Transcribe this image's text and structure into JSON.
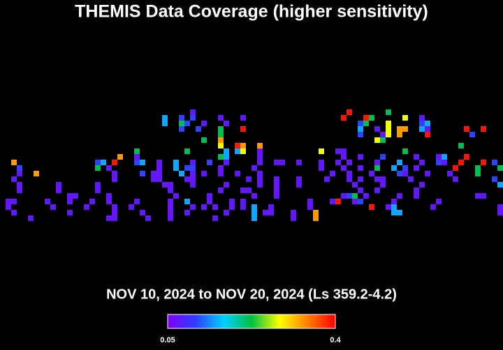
{
  "chart_data": {
    "type": "heatmap",
    "title": "THEMIS Data Coverage (higher sensitivity)",
    "subtitle": "NOV 10, 2024 to NOV 20, 2024 (Ls 359.2-4.2)",
    "clim": [
      0.05,
      0.4
    ],
    "colorbar": {
      "ticks": [
        0.05,
        0.4
      ]
    },
    "colorscale": [
      "#7f00ff",
      "#2f3fff",
      "#00d0ff",
      "#00c040",
      "#ffff00",
      "#ff8000",
      "#ff0000"
    ],
    "cells": [
      [
        34,
        0,
        0.07
      ],
      [
        62,
        0,
        0.39
      ],
      [
        69,
        0,
        0.22
      ],
      [
        32,
        1,
        0.11
      ],
      [
        34,
        1,
        0.11
      ],
      [
        29,
        1,
        0.15
      ],
      [
        39,
        1,
        0.07
      ],
      [
        43,
        1,
        0.07
      ],
      [
        61,
        1,
        0.39
      ],
      [
        65,
        1,
        0.39
      ],
      [
        66,
        1,
        0.22
      ],
      [
        72,
        1,
        0.28
      ],
      [
        75,
        1,
        0.07
      ],
      [
        29,
        2,
        0.15
      ],
      [
        32,
        2,
        0.22
      ],
      [
        33,
        2,
        0.11
      ],
      [
        36,
        2,
        0.07
      ],
      [
        40,
        2,
        0.07
      ],
      [
        64,
        2,
        0.11
      ],
      [
        65,
        2,
        0.22
      ],
      [
        69,
        2,
        0.28
      ],
      [
        75,
        2,
        0.11
      ],
      [
        76,
        2,
        0.15
      ],
      [
        32,
        3,
        0.11
      ],
      [
        35,
        3,
        0.11
      ],
      [
        39,
        3,
        0.22
      ],
      [
        43,
        3,
        0.39
      ],
      [
        64,
        3,
        0.15
      ],
      [
        67,
        3,
        0.07
      ],
      [
        69,
        3,
        0.28
      ],
      [
        71,
        3,
        0.33
      ],
      [
        72,
        3,
        0.33
      ],
      [
        75,
        3,
        0.15
      ],
      [
        76,
        3,
        0.07
      ],
      [
        83,
        3,
        0.39
      ],
      [
        86,
        3,
        0.39
      ],
      [
        39,
        4,
        0.22
      ],
      [
        64,
        4,
        0.11
      ],
      [
        68,
        4,
        0.07
      ],
      [
        69,
        4,
        0.28
      ],
      [
        71,
        4,
        0.33
      ],
      [
        76,
        4,
        0.39
      ],
      [
        84,
        4,
        0.11
      ],
      [
        36,
        5,
        0.22
      ],
      [
        39,
        5,
        0.33
      ],
      [
        67,
        5,
        0.28
      ],
      [
        68,
        5,
        0.22
      ],
      [
        39,
        6,
        0.28
      ],
      [
        42,
        6,
        0.39
      ],
      [
        43,
        6,
        0.33
      ],
      [
        46,
        6,
        0.33
      ],
      [
        82,
        6,
        0.22
      ],
      [
        24,
        7,
        0.22
      ],
      [
        33,
        7,
        0.22
      ],
      [
        40,
        7,
        0.15
      ],
      [
        42,
        7,
        0.15
      ],
      [
        43,
        7,
        0.28
      ],
      [
        46,
        7,
        0.07
      ],
      [
        57,
        7,
        0.28
      ],
      [
        60,
        7,
        0.07
      ],
      [
        61,
        7,
        0.07
      ],
      [
        72,
        7,
        0.22
      ],
      [
        21,
        8,
        0.33
      ],
      [
        24,
        8,
        0.07
      ],
      [
        39,
        8,
        0.22
      ],
      [
        40,
        8,
        0.15
      ],
      [
        46,
        8,
        0.07
      ],
      [
        61,
        8,
        0.07
      ],
      [
        64,
        8,
        0.07
      ],
      [
        68,
        8,
        0.11
      ],
      [
        74,
        8,
        0.07
      ],
      [
        78,
        8,
        0.07
      ],
      [
        79,
        8,
        0.15
      ],
      [
        83,
        8,
        0.39
      ],
      [
        2,
        9,
        0.33
      ],
      [
        17,
        9,
        0.11
      ],
      [
        18,
        9,
        0.15
      ],
      [
        20,
        9,
        0.39
      ],
      [
        24,
        9,
        0.11
      ],
      [
        25,
        9,
        0.15
      ],
      [
        28,
        9,
        0.07
      ],
      [
        31,
        9,
        0.15
      ],
      [
        34,
        9,
        0.07
      ],
      [
        37,
        9,
        0.11
      ],
      [
        40,
        9,
        0.07
      ],
      [
        46,
        9,
        0.07
      ],
      [
        49,
        9,
        0.07
      ],
      [
        50,
        9,
        0.07
      ],
      [
        53,
        9,
        0.07
      ],
      [
        57,
        9,
        0.07
      ],
      [
        60,
        9,
        0.07
      ],
      [
        62,
        9,
        0.07
      ],
      [
        67,
        9,
        0.07
      ],
      [
        71,
        9,
        0.15
      ],
      [
        75,
        9,
        0.07
      ],
      [
        78,
        9,
        0.11
      ],
      [
        79,
        9,
        0.07
      ],
      [
        82,
        9,
        0.39
      ],
      [
        86,
        9,
        0.39
      ],
      [
        88,
        9,
        0.11
      ],
      [
        3,
        10,
        0.11
      ],
      [
        17,
        10,
        0.22
      ],
      [
        19,
        10,
        0.07
      ],
      [
        28,
        10,
        0.07
      ],
      [
        31,
        10,
        0.15
      ],
      [
        33,
        10,
        0.11
      ],
      [
        34,
        10,
        0.11
      ],
      [
        39,
        10,
        0.07
      ],
      [
        45,
        10,
        0.07
      ],
      [
        57,
        10,
        0.07
      ],
      [
        61,
        10,
        0.07
      ],
      [
        64,
        10,
        0.07
      ],
      [
        67,
        10,
        0.22
      ],
      [
        70,
        10,
        0.15
      ],
      [
        72,
        10,
        0.11
      ],
      [
        74,
        10,
        0.07
      ],
      [
        81,
        10,
        0.39
      ],
      [
        85,
        10,
        0.22
      ],
      [
        89,
        10,
        0.22
      ],
      [
        3,
        11,
        0.07
      ],
      [
        6,
        11,
        0.33
      ],
      [
        20,
        11,
        0.07
      ],
      [
        25,
        11,
        0.11
      ],
      [
        27,
        11,
        0.07
      ],
      [
        28,
        11,
        0.07
      ],
      [
        32,
        11,
        0.15
      ],
      [
        34,
        11,
        0.07
      ],
      [
        36,
        11,
        0.07
      ],
      [
        39,
        11,
        0.07
      ],
      [
        42,
        11,
        0.07
      ],
      [
        46,
        11,
        0.07
      ],
      [
        59,
        11,
        0.07
      ],
      [
        62,
        11,
        0.07
      ],
      [
        66,
        11,
        0.07
      ],
      [
        71,
        11,
        0.11
      ],
      [
        72,
        11,
        0.07
      ],
      [
        76,
        11,
        0.07
      ],
      [
        80,
        11,
        0.07
      ],
      [
        85,
        11,
        0.22
      ],
      [
        2,
        12,
        0.07
      ],
      [
        20,
        12,
        0.07
      ],
      [
        27,
        12,
        0.07
      ],
      [
        28,
        12,
        0.07
      ],
      [
        33,
        12,
        0.07
      ],
      [
        34,
        12,
        0.07
      ],
      [
        44,
        12,
        0.07
      ],
      [
        46,
        12,
        0.07
      ],
      [
        49,
        12,
        0.07
      ],
      [
        53,
        12,
        0.07
      ],
      [
        58,
        12,
        0.07
      ],
      [
        62,
        12,
        0.07
      ],
      [
        64,
        12,
        0.07
      ],
      [
        67,
        12,
        0.07
      ],
      [
        68,
        12,
        0.07
      ],
      [
        73,
        12,
        0.07
      ],
      [
        81,
        12,
        0.07
      ],
      [
        88,
        12,
        0.11
      ],
      [
        3,
        13,
        0.07
      ],
      [
        10,
        13,
        0.07
      ],
      [
        17,
        13,
        0.07
      ],
      [
        29,
        13,
        0.07
      ],
      [
        30,
        13,
        0.07
      ],
      [
        34,
        13,
        0.07
      ],
      [
        40,
        13,
        0.07
      ],
      [
        46,
        13,
        0.07
      ],
      [
        49,
        13,
        0.07
      ],
      [
        53,
        13,
        0.07
      ],
      [
        63,
        13,
        0.07
      ],
      [
        68,
        13,
        0.07
      ],
      [
        75,
        13,
        0.07
      ],
      [
        89,
        13,
        0.15
      ],
      [
        3,
        14,
        0.07
      ],
      [
        10,
        14,
        0.07
      ],
      [
        17,
        14,
        0.07
      ],
      [
        30,
        14,
        0.07
      ],
      [
        39,
        14,
        0.07
      ],
      [
        43,
        14,
        0.07
      ],
      [
        44,
        14,
        0.07
      ],
      [
        49,
        14,
        0.07
      ],
      [
        64,
        14,
        0.07
      ],
      [
        67,
        14,
        0.07
      ],
      [
        74,
        14,
        0.07
      ],
      [
        12,
        15,
        0.07
      ],
      [
        13,
        15,
        0.07
      ],
      [
        19,
        15,
        0.07
      ],
      [
        31,
        15,
        0.07
      ],
      [
        37,
        15,
        0.07
      ],
      [
        45,
        15,
        0.07
      ],
      [
        49,
        15,
        0.07
      ],
      [
        61,
        15,
        0.07
      ],
      [
        62,
        15,
        0.11
      ],
      [
        63,
        15,
        0.22
      ],
      [
        65,
        15,
        0.07
      ],
      [
        71,
        15,
        0.07
      ],
      [
        74,
        15,
        0.07
      ],
      [
        85,
        15,
        0.07
      ],
      [
        86,
        15,
        0.07
      ],
      [
        1,
        16,
        0.07
      ],
      [
        2,
        16,
        0.07
      ],
      [
        8,
        16,
        0.07
      ],
      [
        12,
        16,
        0.07
      ],
      [
        16,
        16,
        0.07
      ],
      [
        19,
        16,
        0.07
      ],
      [
        24,
        16,
        0.07
      ],
      [
        30,
        16,
        0.07
      ],
      [
        33,
        16,
        0.15
      ],
      [
        37,
        16,
        0.07
      ],
      [
        41,
        16,
        0.07
      ],
      [
        43,
        16,
        0.07
      ],
      [
        55,
        16,
        0.07
      ],
      [
        59,
        16,
        0.07
      ],
      [
        60,
        16,
        0.39
      ],
      [
        63,
        16,
        0.07
      ],
      [
        64,
        16,
        0.11
      ],
      [
        70,
        16,
        0.07
      ],
      [
        78,
        16,
        0.07
      ],
      [
        1,
        17,
        0.07
      ],
      [
        9,
        17,
        0.07
      ],
      [
        15,
        17,
        0.07
      ],
      [
        20,
        17,
        0.07
      ],
      [
        23,
        17,
        0.07
      ],
      [
        30,
        17,
        0.07
      ],
      [
        34,
        17,
        0.07
      ],
      [
        36,
        17,
        0.07
      ],
      [
        38,
        17,
        0.07
      ],
      [
        41,
        17,
        0.07
      ],
      [
        43,
        17,
        0.07
      ],
      [
        45,
        17,
        0.15
      ],
      [
        48,
        17,
        0.07
      ],
      [
        55,
        17,
        0.07
      ],
      [
        66,
        17,
        0.39
      ],
      [
        69,
        17,
        0.07
      ],
      [
        70,
        17,
        0.15
      ],
      [
        77,
        17,
        0.07
      ],
      [
        89,
        17,
        0.07
      ],
      [
        2,
        18,
        0.07
      ],
      [
        12,
        18,
        0.07
      ],
      [
        20,
        18,
        0.07
      ],
      [
        25,
        18,
        0.07
      ],
      [
        30,
        18,
        0.07
      ],
      [
        33,
        18,
        0.07
      ],
      [
        40,
        18,
        0.07
      ],
      [
        45,
        18,
        0.15
      ],
      [
        47,
        18,
        0.07
      ],
      [
        48,
        18,
        0.07
      ],
      [
        52,
        18,
        0.07
      ],
      [
        56,
        18,
        0.33
      ],
      [
        70,
        18,
        0.15
      ],
      [
        71,
        18,
        0.15
      ],
      [
        89,
        18,
        0.07
      ],
      [
        5,
        19,
        0.07
      ],
      [
        19,
        19,
        0.07
      ],
      [
        20,
        19,
        0.07
      ],
      [
        26,
        19,
        0.07
      ],
      [
        30,
        19,
        0.07
      ],
      [
        38,
        19,
        0.07
      ],
      [
        45,
        19,
        0.15
      ],
      [
        52,
        19,
        0.07
      ],
      [
        56,
        19,
        0.33
      ]
    ]
  }
}
